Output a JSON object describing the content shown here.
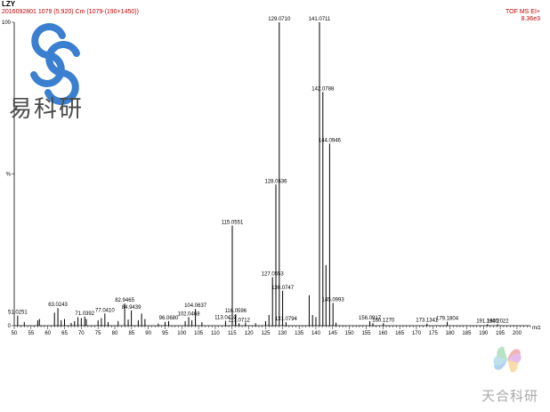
{
  "header": {
    "sample": "LZY",
    "scan": "2016092801 1079 (5.920) Cm (1079-(190+1450))",
    "mode": "TOF MS EI+",
    "intensity": "8.36e3"
  },
  "logo": {
    "text": "易科研",
    "icon": "s-chain-logo-icon",
    "color": "#3b7fd0"
  },
  "watermark": {
    "text": "天合科研",
    "icon": "pinwheel-icon"
  },
  "chart_data": {
    "type": "bar",
    "subtype": "mass-spectrum-stick",
    "xlabel": "m/z",
    "ylabel": "%",
    "xlim": [
      50,
      204
    ],
    "ylim": [
      0,
      100
    ],
    "xticks": [
      50,
      55,
      60,
      65,
      70,
      75,
      80,
      85,
      90,
      95,
      100,
      105,
      110,
      115,
      120,
      125,
      130,
      135,
      140,
      145,
      150,
      155,
      160,
      165,
      170,
      175,
      180,
      185,
      190,
      195,
      200
    ],
    "yticks": [
      {
        "value": 0,
        "label": "0"
      },
      {
        "value": 50,
        "label": "%"
      },
      {
        "value": 100,
        "label": "100"
      }
    ],
    "line_color": "#000000",
    "peaks": [
      {
        "mz": 51.0251,
        "y": 3.3,
        "label": "51.0251"
      },
      {
        "mz": 53.0,
        "y": 1.2
      },
      {
        "mz": 57.0,
        "y": 1.8
      },
      {
        "mz": 57.5,
        "y": 2.2
      },
      {
        "mz": 62.0,
        "y": 4.3
      },
      {
        "mz": 63.0243,
        "y": 5.8,
        "label": "63.0243"
      },
      {
        "mz": 64.0,
        "y": 1.8
      },
      {
        "mz": 65.0,
        "y": 2.2
      },
      {
        "mz": 67.0,
        "y": 0.9
      },
      {
        "mz": 68.0,
        "y": 1.5
      },
      {
        "mz": 69.0,
        "y": 2.8
      },
      {
        "mz": 70.0,
        "y": 2.5
      },
      {
        "mz": 71.0392,
        "y": 3.0,
        "label": "71.0392"
      },
      {
        "mz": 71.5,
        "y": 2.2
      },
      {
        "mz": 75.0,
        "y": 1.8
      },
      {
        "mz": 76.0,
        "y": 2.5
      },
      {
        "mz": 77.041,
        "y": 4.0,
        "label": "77.0410"
      },
      {
        "mz": 78.0,
        "y": 1.2
      },
      {
        "mz": 81.0,
        "y": 1.5
      },
      {
        "mz": 82.9465,
        "y": 7.3,
        "label": "82.9465"
      },
      {
        "mz": 84.0,
        "y": 2.0
      },
      {
        "mz": 84.9439,
        "y": 5.0,
        "label": "84.9439"
      },
      {
        "mz": 87.0,
        "y": 1.8
      },
      {
        "mz": 88.0,
        "y": 4.0
      },
      {
        "mz": 89.0,
        "y": 2.2
      },
      {
        "mz": 93.0,
        "y": 0.7
      },
      {
        "mz": 95.0,
        "y": 1.2
      },
      {
        "mz": 96.068,
        "y": 1.5,
        "label": "96.0680"
      },
      {
        "mz": 101.0,
        "y": 1.5
      },
      {
        "mz": 102.0468,
        "y": 2.8,
        "label": "102.0468"
      },
      {
        "mz": 103.0,
        "y": 1.8
      },
      {
        "mz": 104.0637,
        "y": 5.5,
        "label": "104.0637"
      },
      {
        "mz": 106.0,
        "y": 1.2
      },
      {
        "mz": 113.041,
        "y": 1.6,
        "label": "113.0410"
      },
      {
        "mz": 115.0551,
        "y": 33.0,
        "label": "115.0551"
      },
      {
        "mz": 116.0,
        "y": 3.2
      },
      {
        "mz": 116.0596,
        "y": 3.8,
        "label": "116.0596"
      },
      {
        "mz": 117.0712,
        "y": 0.8,
        "label": "117.0712"
      },
      {
        "mz": 119.0,
        "y": 1.0
      },
      {
        "mz": 122.0,
        "y": 0.8
      },
      {
        "mz": 125.0,
        "y": 1.5
      },
      {
        "mz": 126.0,
        "y": 3.5
      },
      {
        "mz": 127.0553,
        "y": 16.0,
        "label": "127.0553"
      },
      {
        "mz": 128.0636,
        "y": 46.5,
        "label": "128.0636"
      },
      {
        "mz": 129.071,
        "y": 100.0,
        "label": "129.0710"
      },
      {
        "mz": 130.0747,
        "y": 11.5,
        "label": "130.0747"
      },
      {
        "mz": 131.0794,
        "y": 1.2,
        "label": "131.0794"
      },
      {
        "mz": 138.0,
        "y": 10.0
      },
      {
        "mz": 139.0,
        "y": 3.5
      },
      {
        "mz": 140.0,
        "y": 2.8
      },
      {
        "mz": 141.0711,
        "y": 100.0,
        "label": "141.0711"
      },
      {
        "mz": 142.0788,
        "y": 77.0,
        "label": "142.0788"
      },
      {
        "mz": 143.0,
        "y": 20.0
      },
      {
        "mz": 144.0946,
        "y": 60.0,
        "label": "144.0946"
      },
      {
        "mz": 145.0993,
        "y": 7.5,
        "label": "145.0993"
      },
      {
        "mz": 146.0,
        "y": 1.0
      },
      {
        "mz": 156.0917,
        "y": 1.5,
        "label": "156.0917"
      },
      {
        "mz": 157.0,
        "y": 0.8
      },
      {
        "mz": 160.127,
        "y": 0.8,
        "label": "160.1270"
      },
      {
        "mz": 173.1341,
        "y": 0.7,
        "label": "173.1341"
      },
      {
        "mz": 179.1804,
        "y": 1.3,
        "label": "179.1804"
      },
      {
        "mz": 191.1805,
        "y": 0.5,
        "label": "191.1805"
      },
      {
        "mz": 194.2022,
        "y": 0.5,
        "label": "194.2022"
      }
    ]
  }
}
